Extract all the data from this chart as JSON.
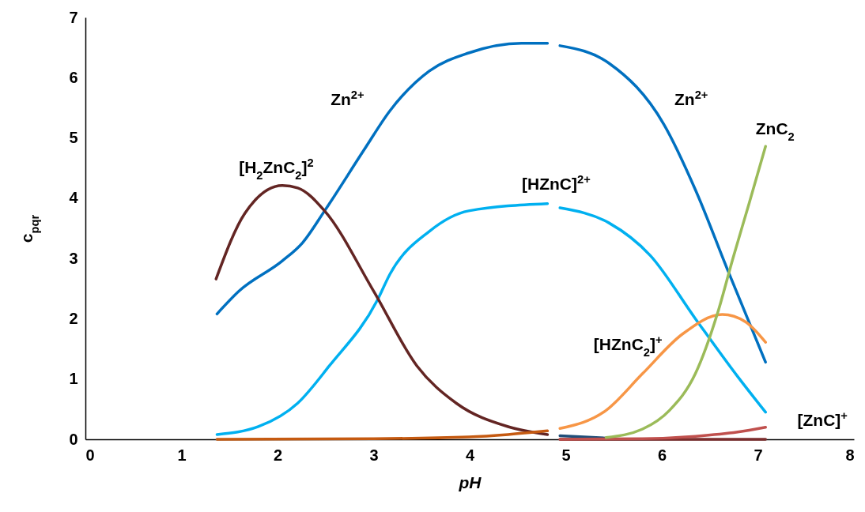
{
  "chart_data": {
    "type": "line",
    "xlabel": "pH",
    "ylabel": "c$_{pqr}$",
    "xlim": [
      0,
      8
    ],
    "ylim": [
      0,
      7
    ],
    "xticks": [
      0,
      1,
      2,
      3,
      4,
      5,
      6,
      7,
      8
    ],
    "yticks": [
      0,
      1,
      2,
      3,
      4,
      5,
      6,
      7
    ],
    "series": [
      {
        "name": "Zn$^{2+}$",
        "color": "#0070c0",
        "x": [
          1.37,
          1.6,
          2.05,
          2.26,
          2.49,
          2.9,
          3.17,
          3.58,
          3.99,
          4.54,
          4.81
        ],
        "values": [
          2.08,
          2.46,
          2.96,
          3.26,
          3.79,
          4.8,
          5.45,
          6.11,
          6.41,
          6.57,
          6.57
        ]
      },
      {
        "name": "Zn$^{2+}$",
        "color": "#0070c0",
        "x": [
          4.94,
          5.45,
          6.02,
          6.35,
          6.68,
          7.08
        ],
        "values": [
          6.53,
          6.24,
          5.23,
          4.14,
          2.83,
          1.28
        ]
      },
      {
        "name": "[HZnC]$^{2+}$",
        "color": "#00b0f0",
        "x": [
          1.37,
          1.8,
          2.21,
          2.54,
          3.04,
          3.17,
          3.58,
          3.99,
          4.81
        ],
        "values": [
          0.08,
          0.21,
          0.6,
          1.22,
          2.31,
          2.74,
          3.45,
          3.79,
          3.91
        ]
      },
      {
        "color": "#00b0f0",
        "x": [
          4.94,
          5.45,
          5.88,
          6.35,
          6.79,
          7.08
        ],
        "values": [
          3.84,
          3.59,
          3.05,
          2.0,
          1.04,
          0.45
        ]
      },
      {
        "name": "[H$_{2}$ZnC$_{2}$]$^{2}$",
        "color": "#632523",
        "x": [
          1.36,
          1.66,
          2.05,
          2.21,
          2.49,
          3.0,
          3.45,
          3.86,
          4.4,
          4.81
        ],
        "values": [
          2.66,
          3.75,
          4.21,
          4.17,
          3.79,
          2.46,
          1.22,
          0.6,
          0.21,
          0.08
        ]
      },
      {
        "color": "#c55a11",
        "x": [
          1.37,
          3.0,
          3.99,
          4.4,
          4.81
        ],
        "values": [
          0.0,
          0.01,
          0.04,
          0.08,
          0.14
        ]
      },
      {
        "color": "#1f4e79",
        "x": [
          4.94,
          5.42
        ],
        "values": [
          0.06,
          0.02
        ]
      },
      {
        "color": "#7b2c2c",
        "x": [
          4.94,
          7.08
        ],
        "values": [
          0.0,
          0.0
        ]
      },
      {
        "name": "[ZnC]$^{+}$",
        "color": "#c0504d",
        "x": [
          4.94,
          5.8,
          6.35,
          6.79,
          7.08
        ],
        "values": [
          0.0,
          0.01,
          0.05,
          0.12,
          0.2
        ]
      },
      {
        "name": "[HZnC$_{2}$]$^{+}$",
        "color": "#f79646",
        "x": [
          4.94,
          5.42,
          5.8,
          6.21,
          6.63,
          6.87,
          7.08
        ],
        "values": [
          0.18,
          0.48,
          1.09,
          1.74,
          2.07,
          1.95,
          1.61
        ]
      },
      {
        "name": "ZnC$_{2}$",
        "color": "#9bbb59",
        "x": [
          5.42,
          5.8,
          6.08,
          6.35,
          6.58,
          6.74,
          6.91,
          7.08
        ],
        "values": [
          0.03,
          0.17,
          0.48,
          1.09,
          2.09,
          3.0,
          3.92,
          4.86
        ]
      }
    ]
  }
}
